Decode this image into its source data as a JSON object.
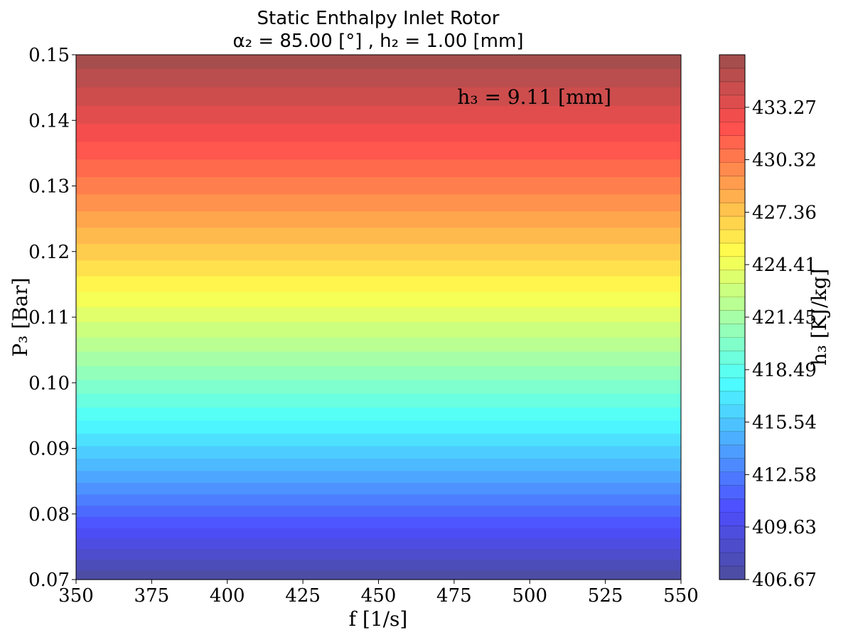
{
  "chart_data": {
    "type": "heatmap",
    "title": "Static Enthalpy Inlet Rotor",
    "subtitle": "α₂ = 85.00 [°] , h₂ = 1.00 [mm]",
    "xlabel": "f [1/s]",
    "ylabel": "P₃ [Bar]",
    "xlim": [
      350,
      550
    ],
    "ylim": [
      0.07,
      0.15
    ],
    "xticks": [
      "350",
      "375",
      "400",
      "425",
      "450",
      "475",
      "500",
      "525",
      "550"
    ],
    "yticks": [
      "0.07",
      "0.08",
      "0.09",
      "0.10",
      "0.11",
      "0.12",
      "0.13",
      "0.14",
      "0.15"
    ],
    "annotation": "h₃ = 9.11 [mm]",
    "colorbar": {
      "label": "h₃ [KJ/kg]",
      "range": [
        406.67,
        436.23
      ],
      "ticks": [
        "406.67",
        "409.63",
        "412.58",
        "415.54",
        "418.49",
        "421.45",
        "424.41",
        "427.36",
        "430.32",
        "433.27"
      ],
      "levels": 39,
      "colormap": "jet",
      "alpha": 0.7
    },
    "contour_boundaries_p3": [
      0.07,
      0.0715,
      0.0731,
      0.0747,
      0.0763,
      0.0779,
      0.0796,
      0.0813,
      0.083,
      0.0848,
      0.0866,
      0.0885,
      0.0904,
      0.0923,
      0.0943,
      0.0963,
      0.0984,
      0.1005,
      0.1026,
      0.1048,
      0.107,
      0.1093,
      0.1116,
      0.1139,
      0.1163,
      0.1187,
      0.1212,
      0.1237,
      0.1262,
      0.1288,
      0.1314,
      0.1341,
      0.1368,
      0.1395,
      0.1423,
      0.1451,
      0.1479,
      0.15
    ]
  }
}
